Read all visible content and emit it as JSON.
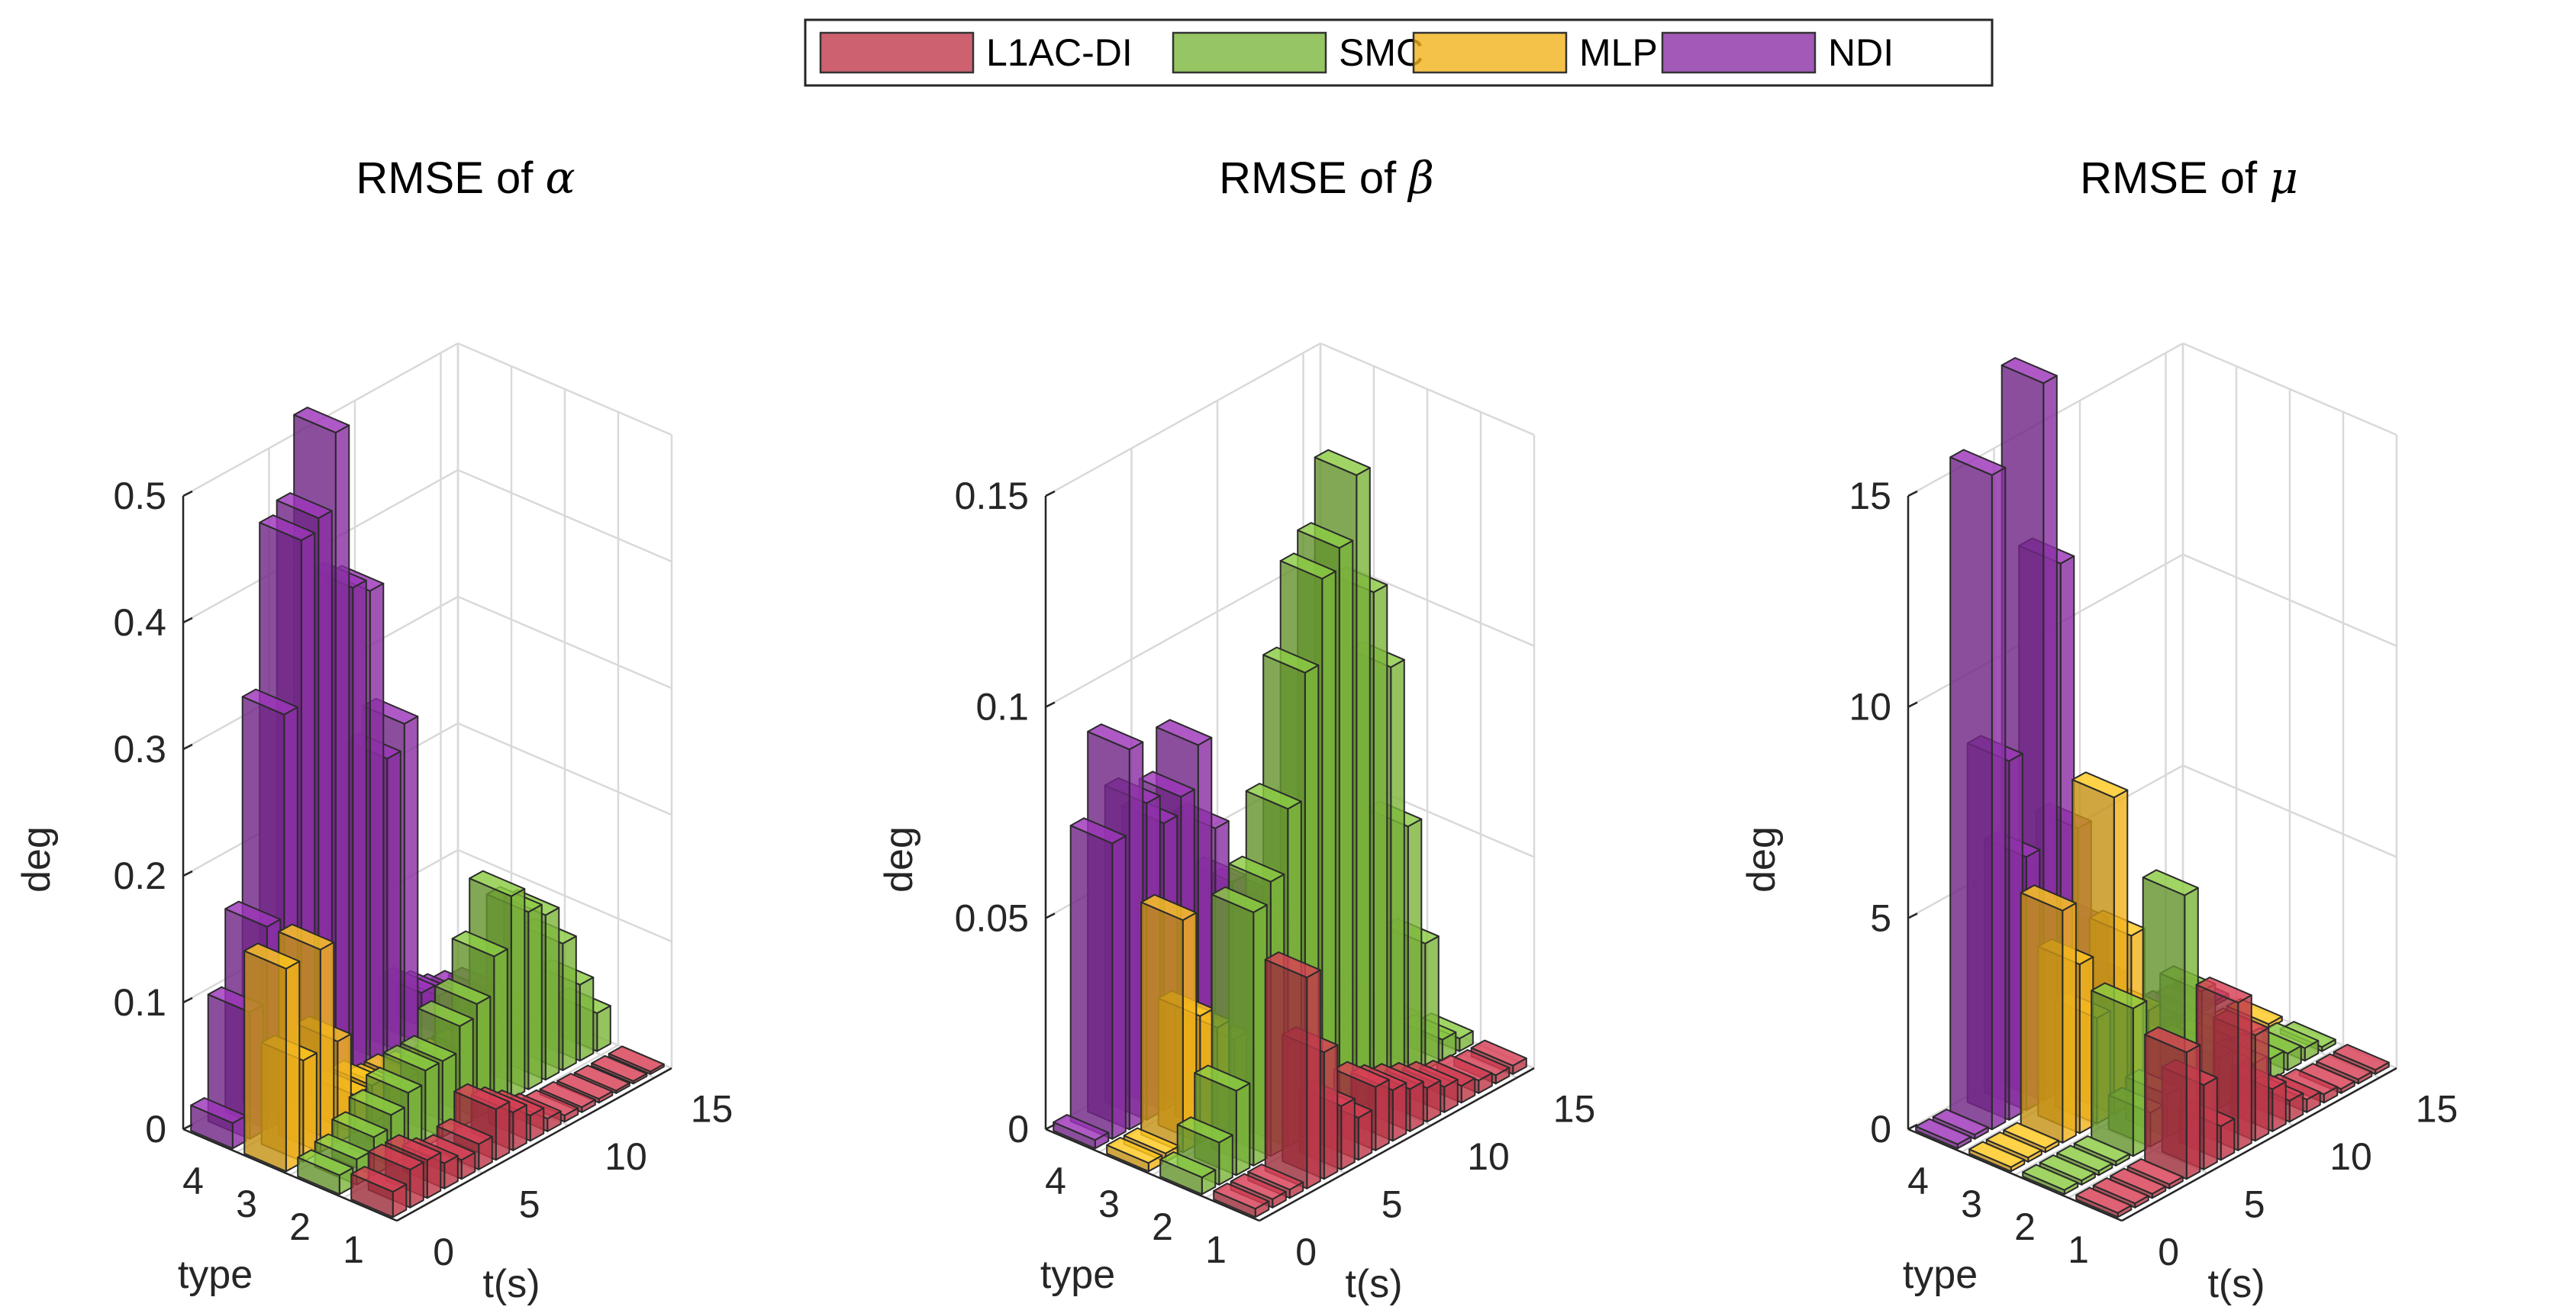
{
  "legend": {
    "items": [
      {
        "label": "L1AC-DI",
        "color": "#c0394b"
      },
      {
        "label": "SMC",
        "color": "#7cb63c"
      },
      {
        "label": "MLP",
        "color": "#f2b31c"
      },
      {
        "label": "NDI",
        "color": "#8b2fa5"
      }
    ]
  },
  "chart_data": [
    {
      "type": "bar3d",
      "title": "RMSE of ",
      "title_symbol": "α",
      "zlabel": "deg",
      "xlabel": "type",
      "ylabel": "t(s)",
      "zlim": [
        0,
        0.5
      ],
      "z_ticks": [
        "0",
        "0.1",
        "0.2",
        "0.3",
        "0.4",
        "0.5"
      ],
      "z_tick_values": [
        0,
        0.1,
        0.2,
        0.3,
        0.4,
        0.5
      ],
      "type_ticks": [
        "4",
        "3",
        "2",
        "1"
      ],
      "t_ticks": [
        "0",
        "5",
        "10",
        "15"
      ],
      "t_tick_values": [
        0,
        5,
        10,
        15
      ],
      "grid": true,
      "series": [
        {
          "name": "NDI",
          "type_index": 4,
          "t": [
            0,
            1,
            2,
            3,
            4,
            5,
            6,
            7,
            8,
            9,
            10,
            11,
            12,
            13,
            14,
            15
          ],
          "values": [
            0.02,
            0.1,
            0.16,
            0.32,
            0.45,
            0.46,
            0.52,
            0.39,
            0.38,
            0.24,
            0.26,
            0.04,
            0.03,
            0.02,
            0.015,
            0.01
          ]
        },
        {
          "name": "MLP",
          "type_index": 3,
          "t": [
            0,
            1,
            2,
            3,
            4,
            5,
            6,
            7,
            8,
            9,
            10,
            11,
            12,
            13,
            14,
            15
          ],
          "values": [
            0.16,
            0.08,
            0.16,
            0.08,
            0.03,
            0.03,
            0.02,
            0.02,
            0.015,
            0.01,
            0.01,
            0.01,
            0.005,
            0.005,
            0.005,
            0.005
          ]
        },
        {
          "name": "SMC",
          "type_index": 2,
          "t": [
            0,
            1,
            2,
            3,
            4,
            5,
            6,
            7,
            8,
            9,
            10,
            11,
            12,
            13,
            14,
            15
          ],
          "values": [
            0.015,
            0.02,
            0.03,
            0.04,
            0.05,
            0.06,
            0.06,
            0.08,
            0.09,
            0.12,
            0.16,
            0.14,
            0.13,
            0.1,
            0.06,
            0.03
          ]
        },
        {
          "name": "L1AC-DI",
          "type_index": 1,
          "t": [
            0,
            1,
            2,
            3,
            4,
            5,
            6,
            7,
            8,
            9,
            10,
            11,
            12,
            13,
            14,
            15
          ],
          "values": [
            0.02,
            0.03,
            0.03,
            0.02,
            0.015,
            0.02,
            0.04,
            0.03,
            0.02,
            0.01,
            0.005,
            0.004,
            0.003,
            0.002,
            0.002,
            0.002
          ]
        }
      ]
    },
    {
      "type": "bar3d",
      "title": "RMSE of ",
      "title_symbol": "β",
      "zlabel": "deg",
      "xlabel": "type",
      "ylabel": "t(s)",
      "zlim": [
        0,
        0.15
      ],
      "z_ticks": [
        "0",
        "0.05",
        "0.1",
        "0.15"
      ],
      "z_tick_values": [
        0,
        0.05,
        0.1,
        0.15
      ],
      "type_ticks": [
        "4",
        "3",
        "2",
        "1"
      ],
      "t_ticks": [
        "0",
        "5",
        "10",
        "15"
      ],
      "t_tick_values": [
        0,
        5,
        10,
        15
      ],
      "grid": true,
      "series": [
        {
          "name": "NDI",
          "type_index": 4,
          "t": [
            0,
            1,
            2,
            3,
            4,
            5,
            6,
            7,
            8,
            9,
            10,
            11,
            12,
            13,
            14,
            15
          ],
          "values": [
            0.002,
            0.07,
            0.09,
            0.075,
            0.068,
            0.072,
            0.082,
            0.06,
            0.045,
            0.04,
            0.035,
            0.03,
            0.02,
            0.01,
            0.005,
            0.003
          ]
        },
        {
          "name": "MLP",
          "type_index": 3,
          "t": [
            0,
            1,
            2,
            3,
            4,
            5,
            6,
            7,
            8,
            9,
            10,
            11,
            12,
            13,
            14,
            15
          ],
          "values": [
            0.002,
            0.002,
            0.055,
            0.03,
            0.025,
            0.02,
            0.015,
            0.01,
            0.008,
            0.005,
            0.004,
            0.003,
            0.002,
            0.002,
            0.002,
            0.002
          ]
        },
        {
          "name": "SMC",
          "type_index": 2,
          "t": [
            0,
            1,
            2,
            3,
            4,
            5,
            6,
            7,
            8,
            9,
            10,
            11,
            12,
            13,
            14,
            15
          ],
          "values": [
            0.004,
            0.01,
            0.02,
            0.06,
            0.065,
            0.08,
            0.11,
            0.13,
            0.135,
            0.15,
            0.12,
            0.1,
            0.06,
            0.03,
            0.005,
            0.003
          ]
        },
        {
          "name": "L1AC-DI",
          "type_index": 1,
          "t": [
            0,
            1,
            2,
            3,
            4,
            5,
            6,
            7,
            8,
            9,
            10,
            11,
            12,
            13,
            14,
            15
          ],
          "values": [
            0.002,
            0.002,
            0.002,
            0.05,
            0.03,
            0.015,
            0.01,
            0.015,
            0.012,
            0.01,
            0.008,
            0.006,
            0.004,
            0.003,
            0.002,
            0.002
          ]
        }
      ]
    },
    {
      "type": "bar3d",
      "title": "RMSE of ",
      "title_symbol": "μ",
      "zlabel": "deg",
      "xlabel": "type",
      "ylabel": "t(s)",
      "zlim": [
        0,
        15
      ],
      "z_ticks": [
        "0",
        "5",
        "10",
        "15"
      ],
      "z_tick_values": [
        0,
        5,
        10,
        15
      ],
      "type_ticks": [
        "4",
        "3",
        "2",
        "1"
      ],
      "t_ticks": [
        "0",
        "5",
        "10",
        "15"
      ],
      "t_tick_values": [
        0,
        5,
        10,
        15
      ],
      "grid": true,
      "series": [
        {
          "name": "NDI",
          "type_index": 4,
          "t": [
            0,
            1,
            2,
            3,
            4,
            5,
            6,
            7,
            8,
            9,
            10,
            11,
            12,
            13,
            14,
            15
          ],
          "values": [
            0.1,
            0.1,
            15.5,
            8.5,
            6.0,
            17.0,
            12.5,
            6.0,
            3.5,
            2.0,
            1.0,
            0.5,
            0.3,
            0.2,
            0.1,
            0.1
          ]
        },
        {
          "name": "MLP",
          "type_index": 3,
          "t": [
            0,
            1,
            2,
            3,
            4,
            5,
            6,
            7,
            8,
            9,
            10,
            11,
            12,
            13,
            14,
            15
          ],
          "values": [
            0.1,
            0.1,
            0.1,
            5.5,
            4.0,
            2.5,
            7.5,
            4.0,
            2.0,
            1.0,
            0.6,
            0.4,
            0.3,
            0.2,
            0.1,
            0.1
          ]
        },
        {
          "name": "SMC",
          "type_index": 2,
          "t": [
            0,
            1,
            2,
            3,
            4,
            5,
            6,
            7,
            8,
            9,
            10,
            11,
            12,
            13,
            14,
            15
          ],
          "values": [
            0.1,
            0.1,
            0.1,
            0.1,
            3.5,
            0.8,
            1.0,
            5.5,
            3.0,
            1.2,
            0.8,
            0.6,
            0.5,
            0.4,
            0.3,
            0.1
          ]
        },
        {
          "name": "L1AC-DI",
          "type_index": 1,
          "t": [
            0,
            1,
            2,
            3,
            4,
            5,
            6,
            7,
            8,
            9,
            10,
            11,
            12,
            13,
            14,
            15
          ],
          "values": [
            0.1,
            0.1,
            0.1,
            0.1,
            3.0,
            2.0,
            0.8,
            3.5,
            2.5,
            1.0,
            0.5,
            0.3,
            0.2,
            0.1,
            0.1,
            0.1
          ]
        }
      ]
    }
  ]
}
